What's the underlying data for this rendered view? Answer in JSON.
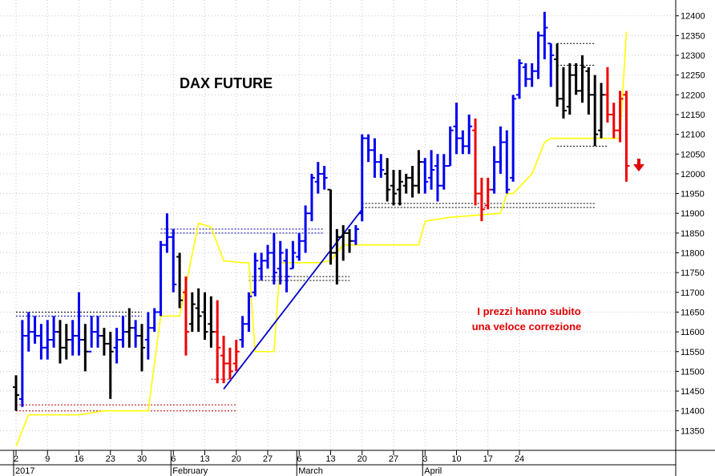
{
  "chart_data": {
    "type": "ohlc",
    "title": "DAX FUTURE",
    "annotation": [
      "I prezzi hanno subito",
      "una veloce correzione"
    ],
    "ylim": [
      11300,
      12440
    ],
    "yticks": [
      11350,
      11400,
      11450,
      11500,
      11550,
      11600,
      11650,
      11700,
      11750,
      11800,
      11850,
      11900,
      11950,
      12000,
      12050,
      12100,
      12150,
      12200,
      12250,
      12300,
      12350,
      12400
    ],
    "xticks": [
      {
        "label": "2",
        "month": "2017",
        "x": "2017-01-02"
      },
      {
        "label": "9",
        "x": "2017-01-09"
      },
      {
        "label": "16",
        "x": "2017-01-16"
      },
      {
        "label": "23",
        "x": "2017-01-23"
      },
      {
        "label": "30",
        "x": "2017-01-30"
      },
      {
        "label": "6",
        "month": "February",
        "x": "2017-02-06"
      },
      {
        "label": "13",
        "x": "2017-02-13"
      },
      {
        "label": "20",
        "x": "2017-02-20"
      },
      {
        "label": "27",
        "x": "2017-02-27"
      },
      {
        "label": "6",
        "month": "March",
        "x": "2017-03-06"
      },
      {
        "label": "13",
        "x": "2017-03-13"
      },
      {
        "label": "20",
        "x": "2017-03-20"
      },
      {
        "label": "27",
        "x": "2017-03-27"
      },
      {
        "label": "3",
        "month": "April",
        "x": "2017-04-03"
      },
      {
        "label": "10",
        "x": "2017-04-10"
      },
      {
        "label": "17",
        "x": "2017-04-17"
      },
      {
        "label": "24",
        "x": "2017-04-24"
      }
    ],
    "colors": {
      "up": "#0000ee",
      "down": "#ee0000",
      "neutral": "#000000",
      "stop": "#ffff00",
      "trendline": "#0000cc",
      "grid": "#c8c8c8"
    },
    "bars": [
      {
        "x": "2017-01-02",
        "o": 11460,
        "h": 11490,
        "l": 11400,
        "c": 11440,
        "color": "neutral"
      },
      {
        "x": "2017-01-03",
        "o": 11430,
        "h": 11630,
        "l": 11410,
        "c": 11590,
        "color": "up"
      },
      {
        "x": "2017-01-04",
        "o": 11590,
        "h": 11650,
        "l": 11550,
        "c": 11600,
        "color": "up"
      },
      {
        "x": "2017-01-05",
        "o": 11600,
        "h": 11640,
        "l": 11570,
        "c": 11590,
        "color": "up"
      },
      {
        "x": "2017-01-06",
        "o": 11590,
        "h": 11620,
        "l": 11530,
        "c": 11560,
        "color": "up"
      },
      {
        "x": "2017-01-09",
        "o": 11560,
        "h": 11630,
        "l": 11530,
        "c": 11580,
        "color": "up"
      },
      {
        "x": "2017-01-10",
        "o": 11580,
        "h": 11640,
        "l": 11560,
        "c": 11600,
        "color": "up"
      },
      {
        "x": "2017-01-11",
        "o": 11600,
        "h": 11630,
        "l": 11520,
        "c": 11560,
        "color": "neutral"
      },
      {
        "x": "2017-01-12",
        "o": 11560,
        "h": 11620,
        "l": 11530,
        "c": 11580,
        "color": "neutral"
      },
      {
        "x": "2017-01-13",
        "o": 11580,
        "h": 11630,
        "l": 11540,
        "c": 11590,
        "color": "up"
      },
      {
        "x": "2017-01-16",
        "o": 11590,
        "h": 11700,
        "l": 11540,
        "c": 11580,
        "color": "up"
      },
      {
        "x": "2017-01-17",
        "o": 11580,
        "h": 11620,
        "l": 11500,
        "c": 11550,
        "color": "neutral"
      },
      {
        "x": "2017-01-18",
        "o": 11550,
        "h": 11640,
        "l": 11560,
        "c": 11600,
        "color": "up"
      },
      {
        "x": "2017-01-19",
        "o": 11600,
        "h": 11640,
        "l": 11560,
        "c": 11590,
        "color": "up"
      },
      {
        "x": "2017-01-20",
        "o": 11590,
        "h": 11610,
        "l": 11540,
        "c": 11570,
        "color": "neutral"
      },
      {
        "x": "2017-01-23",
        "o": 11570,
        "h": 11600,
        "l": 11430,
        "c": 11550,
        "color": "neutral"
      },
      {
        "x": "2017-01-24",
        "o": 11560,
        "h": 11610,
        "l": 11520,
        "c": 11580,
        "color": "up"
      },
      {
        "x": "2017-01-25",
        "o": 11580,
        "h": 11640,
        "l": 11560,
        "c": 11600,
        "color": "up"
      },
      {
        "x": "2017-01-26",
        "o": 11600,
        "h": 11660,
        "l": 11560,
        "c": 11610,
        "color": "neutral"
      },
      {
        "x": "2017-01-27",
        "o": 11610,
        "h": 11630,
        "l": 11560,
        "c": 11590,
        "color": "up"
      },
      {
        "x": "2017-01-30",
        "o": 11590,
        "h": 11620,
        "l": 11500,
        "c": 11560,
        "color": "neutral"
      },
      {
        "x": "2017-01-31",
        "o": 11580,
        "h": 11650,
        "l": 11530,
        "c": 11610,
        "color": "up"
      },
      {
        "x": "2017-02-01",
        "o": 11610,
        "h": 11660,
        "l": 11600,
        "c": 11650,
        "color": "up"
      },
      {
        "x": "2017-02-02",
        "o": 11650,
        "h": 11830,
        "l": 11640,
        "c": 11820,
        "color": "up"
      },
      {
        "x": "2017-02-03",
        "o": 11820,
        "h": 11900,
        "l": 11800,
        "c": 11840,
        "color": "up"
      },
      {
        "x": "2017-02-06",
        "o": 11840,
        "h": 11860,
        "l": 11700,
        "c": 11720,
        "color": "up"
      },
      {
        "x": "2017-02-07",
        "o": 11790,
        "h": 11800,
        "l": 11660,
        "c": 11680,
        "color": "neutral"
      },
      {
        "x": "2017-02-08",
        "o": 11700,
        "h": 11740,
        "l": 11540,
        "c": 11600,
        "color": "down"
      },
      {
        "x": "2017-02-09",
        "o": 11620,
        "h": 11700,
        "l": 11600,
        "c": 11670,
        "color": "neutral"
      },
      {
        "x": "2017-02-10",
        "o": 11660,
        "h": 11710,
        "l": 11600,
        "c": 11640,
        "color": "neutral"
      },
      {
        "x": "2017-02-13",
        "o": 11650,
        "h": 11700,
        "l": 11580,
        "c": 11600,
        "color": "neutral"
      },
      {
        "x": "2017-02-14",
        "o": 11620,
        "h": 11690,
        "l": 11560,
        "c": 11600,
        "color": "neutral"
      },
      {
        "x": "2017-02-15",
        "o": 11600,
        "h": 11680,
        "l": 11470,
        "c": 11560,
        "color": "down"
      },
      {
        "x": "2017-02-16",
        "o": 11540,
        "h": 11590,
        "l": 11470,
        "c": 11520,
        "color": "down"
      },
      {
        "x": "2017-02-17",
        "o": 11520,
        "h": 11560,
        "l": 11480,
        "c": 11500,
        "color": "down"
      },
      {
        "x": "2017-02-20",
        "o": 11520,
        "h": 11580,
        "l": 11500,
        "c": 11550,
        "color": "down"
      },
      {
        "x": "2017-02-21",
        "o": 11580,
        "h": 11640,
        "l": 11560,
        "c": 11620,
        "color": "up"
      },
      {
        "x": "2017-02-22",
        "o": 11620,
        "h": 11700,
        "l": 11600,
        "c": 11690,
        "color": "up"
      },
      {
        "x": "2017-02-23",
        "o": 11700,
        "h": 11800,
        "l": 11690,
        "c": 11780,
        "color": "up"
      },
      {
        "x": "2017-02-24",
        "o": 11760,
        "h": 11800,
        "l": 11730,
        "c": 11780,
        "color": "up"
      },
      {
        "x": "2017-02-27",
        "o": 11780,
        "h": 11820,
        "l": 11760,
        "c": 11800,
        "color": "up"
      },
      {
        "x": "2017-02-28",
        "o": 11800,
        "h": 11850,
        "l": 11720,
        "c": 11750,
        "color": "up"
      },
      {
        "x": "2017-03-01",
        "o": 11760,
        "h": 11830,
        "l": 11720,
        "c": 11800,
        "color": "up"
      },
      {
        "x": "2017-03-02",
        "o": 11780,
        "h": 11810,
        "l": 11700,
        "c": 11740,
        "color": "up"
      },
      {
        "x": "2017-03-03",
        "o": 11760,
        "h": 11830,
        "l": 11760,
        "c": 11800,
        "color": "up"
      },
      {
        "x": "2017-03-06",
        "o": 11790,
        "h": 11850,
        "l": 11780,
        "c": 11830,
        "color": "up"
      },
      {
        "x": "2017-03-07",
        "o": 11830,
        "h": 11920,
        "l": 11800,
        "c": 11900,
        "color": "up"
      },
      {
        "x": "2017-03-08",
        "o": 11900,
        "h": 12000,
        "l": 11880,
        "c": 11990,
        "color": "up"
      },
      {
        "x": "2017-03-09",
        "o": 11980,
        "h": 12030,
        "l": 11950,
        "c": 12000,
        "color": "up"
      },
      {
        "x": "2017-03-10",
        "o": 12000,
        "h": 12020,
        "l": 11960,
        "c": 11990,
        "color": "up"
      },
      {
        "x": "2017-03-13",
        "o": 11960,
        "h": 11960,
        "l": 11770,
        "c": 11800,
        "color": "neutral"
      },
      {
        "x": "2017-03-14",
        "o": 11800,
        "h": 11860,
        "l": 11720,
        "c": 11840,
        "color": "neutral"
      },
      {
        "x": "2017-03-15",
        "o": 11840,
        "h": 11870,
        "l": 11780,
        "c": 11850,
        "color": "neutral"
      },
      {
        "x": "2017-03-16",
        "o": 11850,
        "h": 11860,
        "l": 11800,
        "c": 11830,
        "color": "neutral"
      },
      {
        "x": "2017-03-17",
        "o": 11830,
        "h": 11870,
        "l": 11820,
        "c": 11860,
        "color": "up"
      },
      {
        "x": "2017-03-20",
        "o": 11900,
        "h": 12100,
        "l": 11880,
        "c": 12090,
        "color": "up"
      },
      {
        "x": "2017-03-21",
        "o": 12090,
        "h": 12100,
        "l": 12030,
        "c": 12060,
        "color": "up"
      },
      {
        "x": "2017-03-22",
        "o": 12060,
        "h": 12090,
        "l": 11990,
        "c": 12030,
        "color": "up"
      },
      {
        "x": "2017-03-23",
        "o": 12030,
        "h": 12050,
        "l": 11990,
        "c": 12010,
        "color": "up"
      },
      {
        "x": "2017-03-24",
        "o": 12000,
        "h": 12040,
        "l": 11930,
        "c": 11960,
        "color": "neutral"
      },
      {
        "x": "2017-03-27",
        "o": 11970,
        "h": 12010,
        "l": 11920,
        "c": 11950,
        "color": "neutral"
      },
      {
        "x": "2017-03-28",
        "o": 11960,
        "h": 12010,
        "l": 11920,
        "c": 11980,
        "color": "neutral"
      },
      {
        "x": "2017-03-29",
        "o": 11970,
        "h": 12000,
        "l": 11950,
        "c": 11990,
        "color": "neutral"
      },
      {
        "x": "2017-03-30",
        "o": 11990,
        "h": 12020,
        "l": 11940,
        "c": 11970,
        "color": "neutral"
      },
      {
        "x": "2017-03-31",
        "o": 11970,
        "h": 12060,
        "l": 11950,
        "c": 12030,
        "color": "neutral"
      },
      {
        "x": "2017-04-03",
        "o": 12030,
        "h": 12040,
        "l": 11950,
        "c": 11980,
        "color": "up"
      },
      {
        "x": "2017-04-04",
        "o": 11990,
        "h": 12060,
        "l": 11960,
        "c": 12010,
        "color": "up"
      },
      {
        "x": "2017-04-05",
        "o": 12020,
        "h": 12050,
        "l": 11930,
        "c": 11970,
        "color": "up"
      },
      {
        "x": "2017-04-06",
        "o": 11970,
        "h": 12050,
        "l": 11960,
        "c": 12020,
        "color": "up"
      },
      {
        "x": "2017-04-07",
        "o": 12020,
        "h": 12120,
        "l": 12020,
        "c": 12110,
        "color": "up"
      },
      {
        "x": "2017-04-10",
        "o": 12120,
        "h": 12180,
        "l": 12050,
        "c": 12090,
        "color": "up"
      },
      {
        "x": "2017-04-11",
        "o": 12090,
        "h": 12110,
        "l": 12050,
        "c": 12070,
        "color": "up"
      },
      {
        "x": "2017-04-12",
        "o": 12070,
        "h": 12150,
        "l": 12050,
        "c": 12120,
        "color": "up"
      },
      {
        "x": "2017-04-13",
        "o": 12110,
        "h": 12140,
        "l": 11920,
        "c": 11950,
        "color": "down"
      },
      {
        "x": "2017-04-14",
        "o": 11950,
        "h": 11990,
        "l": 11880,
        "c": 11910,
        "color": "down"
      },
      {
        "x": "2017-04-17",
        "o": 11920,
        "h": 11990,
        "l": 11910,
        "c": 11960,
        "color": "down"
      },
      {
        "x": "2017-04-18",
        "o": 11960,
        "h": 12070,
        "l": 11950,
        "c": 12030,
        "color": "up"
      },
      {
        "x": "2017-04-19",
        "o": 12030,
        "h": 12120,
        "l": 12000,
        "c": 12080,
        "color": "up"
      },
      {
        "x": "2017-04-20",
        "o": 12080,
        "h": 12110,
        "l": 11950,
        "c": 11960,
        "color": "up"
      },
      {
        "x": "2017-04-21",
        "o": 11990,
        "h": 12200,
        "l": 11980,
        "c": 12190,
        "color": "up"
      },
      {
        "x": "2017-04-24",
        "o": 12200,
        "h": 12290,
        "l": 12190,
        "c": 12280,
        "color": "up"
      },
      {
        "x": "2017-04-25",
        "o": 12270,
        "h": 12280,
        "l": 12220,
        "c": 12240,
        "color": "up"
      },
      {
        "x": "2017-04-26",
        "o": 12240,
        "h": 12280,
        "l": 12220,
        "c": 12260,
        "color": "up"
      },
      {
        "x": "2017-04-27",
        "o": 12260,
        "h": 12360,
        "l": 12240,
        "c": 12350,
        "color": "up"
      },
      {
        "x": "2017-04-28",
        "o": 12350,
        "h": 12410,
        "l": 12290,
        "c": 12370,
        "color": "up"
      },
      {
        "x": "2017-05-01",
        "o": 12330,
        "h": 12330,
        "l": 12220,
        "c": 12300,
        "color": "up"
      },
      {
        "x": "2017-05-02",
        "o": 12290,
        "h": 12330,
        "l": 12170,
        "c": 12190,
        "color": "neutral"
      },
      {
        "x": "2017-05-03",
        "o": 12190,
        "h": 12270,
        "l": 12140,
        "c": 12160,
        "color": "neutral"
      },
      {
        "x": "2017-05-04",
        "o": 12170,
        "h": 12280,
        "l": 12150,
        "c": 12250,
        "color": "neutral"
      },
      {
        "x": "2017-05-05",
        "o": 12250,
        "h": 12280,
        "l": 12200,
        "c": 12210,
        "color": "neutral"
      },
      {
        "x": "2017-05-08",
        "o": 12210,
        "h": 12300,
        "l": 12180,
        "c": 12270,
        "color": "neutral"
      },
      {
        "x": "2017-05-09",
        "o": 12260,
        "h": 12270,
        "l": 12150,
        "c": 12200,
        "color": "neutral"
      },
      {
        "x": "2017-05-10",
        "o": 12200,
        "h": 12250,
        "l": 12070,
        "c": 12100,
        "color": "neutral"
      },
      {
        "x": "2017-05-11",
        "o": 12110,
        "h": 12230,
        "l": 12090,
        "c": 12200,
        "color": "neutral"
      },
      {
        "x": "2017-05-12",
        "o": 12200,
        "h": 12270,
        "l": 12130,
        "c": 12150,
        "color": "down"
      },
      {
        "x": "2017-05-15",
        "o": 12150,
        "h": 12180,
        "l": 12090,
        "c": 12110,
        "color": "down"
      },
      {
        "x": "2017-05-16",
        "o": 12110,
        "h": 12210,
        "l": 12080,
        "c": 12190,
        "color": "down"
      },
      {
        "x": "2017-05-17",
        "o": 12200,
        "h": 12210,
        "l": 11980,
        "c": 12020,
        "color": "down"
      }
    ]
  }
}
